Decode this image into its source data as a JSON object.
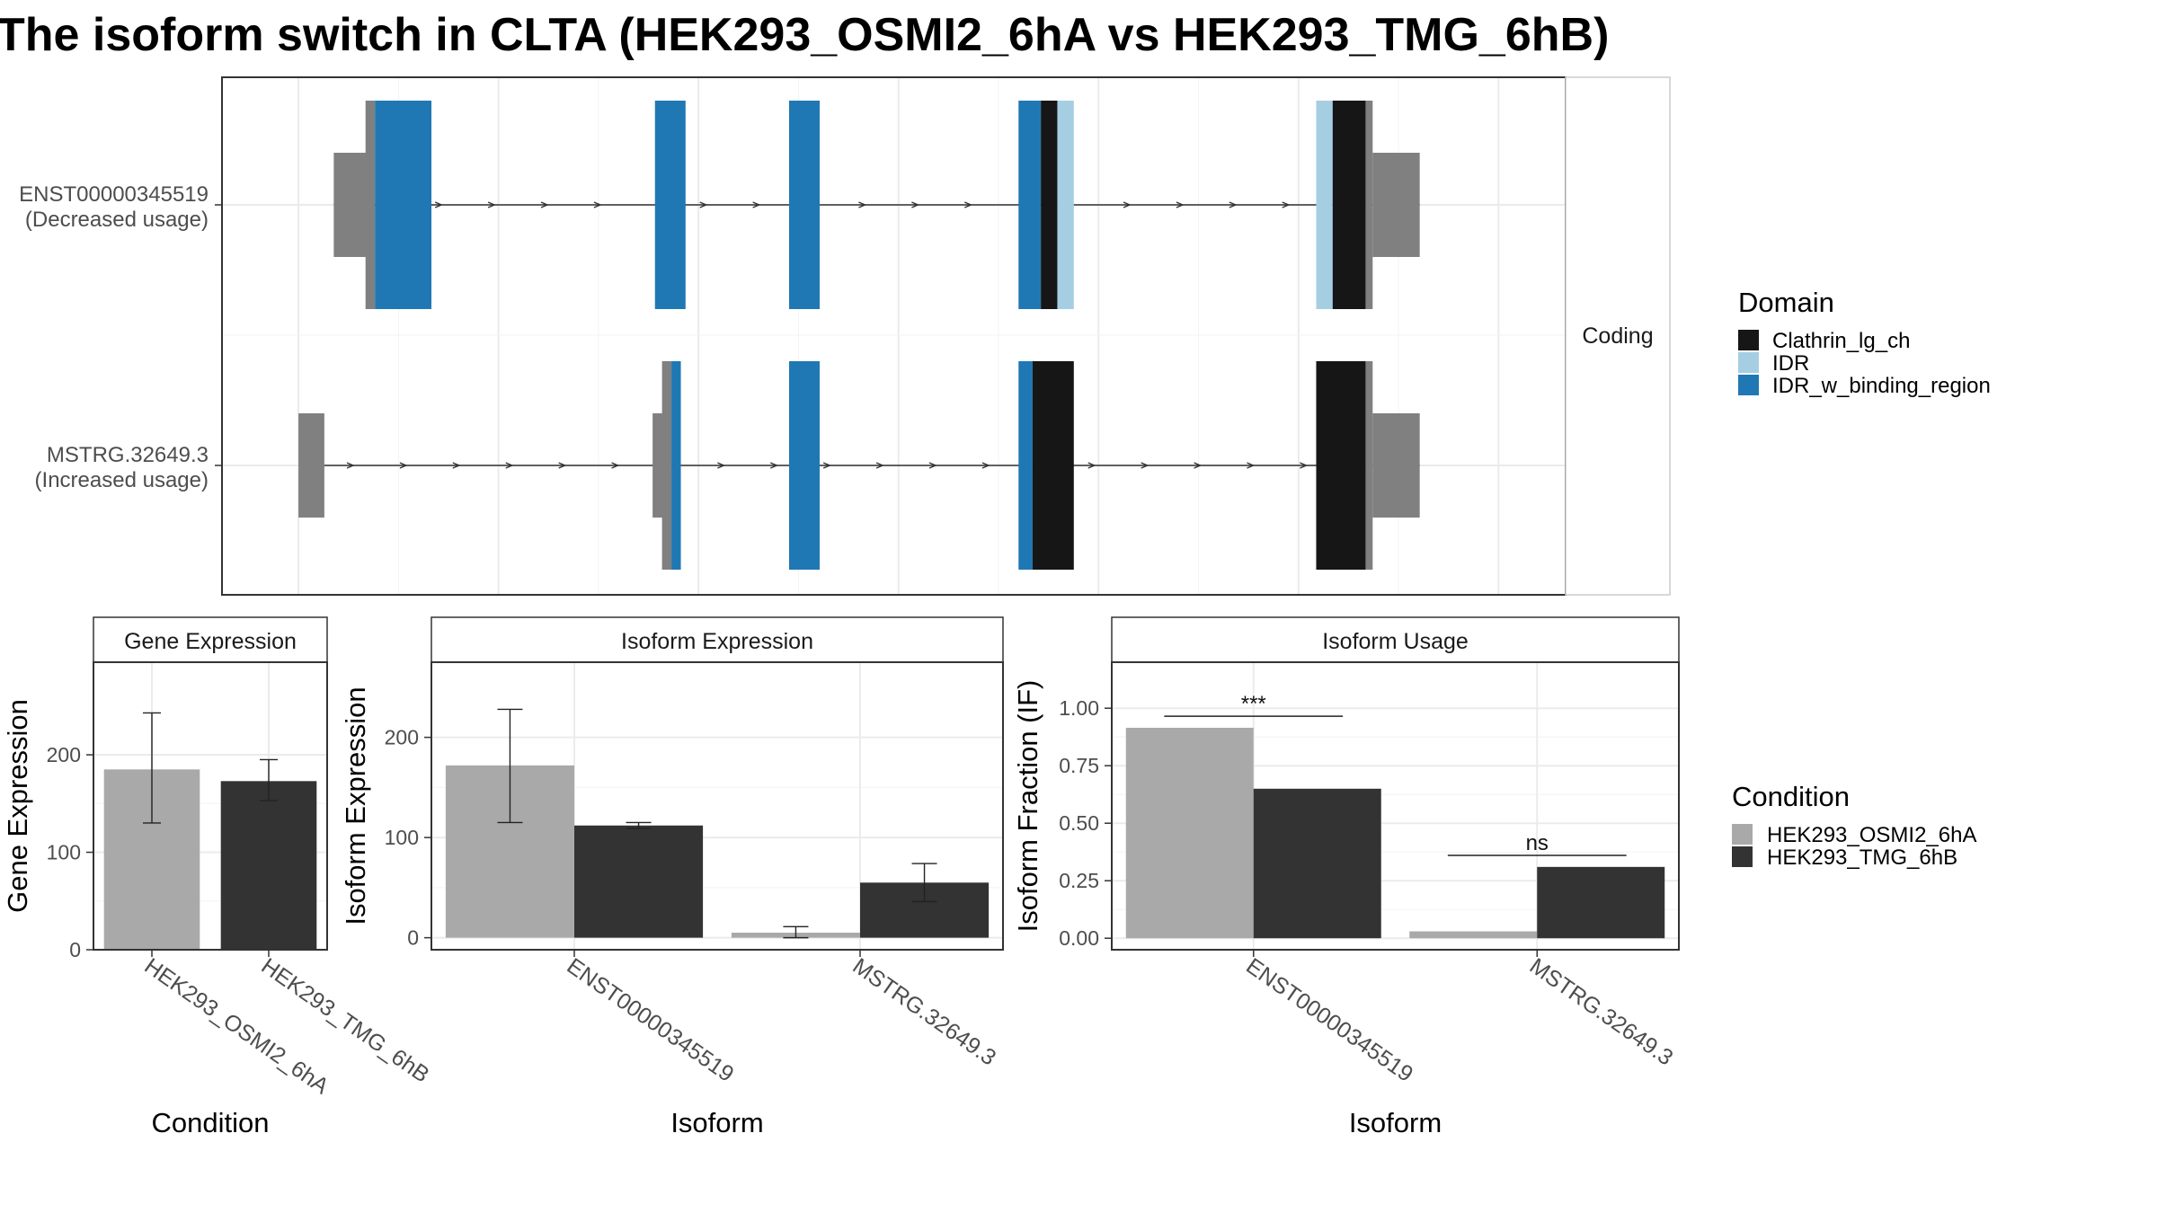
{
  "title": "The isoform switch in CLTA (HEK293_OSMI2_6hA vs HEK293_TMG_6hB)",
  "colors": {
    "utr": "#808080",
    "Clathrin_lg_ch": "#161616",
    "IDR": "#a6cee3",
    "IDR_w_binding_region": "#1f78b4",
    "HEK293_OSMI2_6hA": "#a9a9a9",
    "HEK293_TMG_6hB": "#333333",
    "intron": "#333333"
  },
  "domain_legend": {
    "title": "Domain",
    "items": [
      "Clathrin_lg_ch",
      "IDR",
      "IDR_w_binding_region"
    ]
  },
  "condition_legend": {
    "title": "Condition",
    "items": [
      "HEK293_OSMI2_6hA",
      "HEK293_TMG_6hB"
    ]
  },
  "structure": {
    "strip_label": "Coding",
    "transcripts": [
      {
        "id": "ENST00000345519",
        "usage": "(Decreased usage)",
        "span": [
          105,
          1120
        ],
        "features": [
          {
            "start": 105,
            "end": 138,
            "kind": "utr"
          },
          {
            "start": 132,
            "end": 140,
            "kind": "utr_cds"
          },
          {
            "start": 140,
            "end": 188,
            "kind": "IDR_w_binding_region"
          },
          {
            "start": 378,
            "end": 404,
            "kind": "IDR_w_binding_region"
          },
          {
            "start": 492,
            "end": 518,
            "kind": "IDR_w_binding_region"
          },
          {
            "start": 687,
            "end": 706,
            "kind": "IDR_w_binding_region"
          },
          {
            "start": 706,
            "end": 720,
            "kind": "Clathrin_lg_ch"
          },
          {
            "start": 720,
            "end": 734,
            "kind": "IDR"
          },
          {
            "start": 940,
            "end": 954,
            "kind": "IDR"
          },
          {
            "start": 954,
            "end": 982,
            "kind": "Clathrin_lg_ch"
          },
          {
            "start": 982,
            "end": 988,
            "kind": "utr_cds"
          },
          {
            "start": 988,
            "end": 1028,
            "kind": "utr"
          }
        ]
      },
      {
        "id": "MSTRG.32649.3",
        "usage": "(Increased usage)",
        "span": [
          75,
          1120
        ],
        "features": [
          {
            "start": 75,
            "end": 97,
            "kind": "utr"
          },
          {
            "start": 376,
            "end": 390,
            "kind": "utr"
          },
          {
            "start": 384,
            "end": 392,
            "kind": "utr_cds"
          },
          {
            "start": 392,
            "end": 400,
            "kind": "IDR_w_binding_region"
          },
          {
            "start": 492,
            "end": 518,
            "kind": "IDR_w_binding_region"
          },
          {
            "start": 687,
            "end": 699,
            "kind": "IDR_w_binding_region"
          },
          {
            "start": 699,
            "end": 734,
            "kind": "Clathrin_lg_ch"
          },
          {
            "start": 940,
            "end": 982,
            "kind": "Clathrin_lg_ch"
          },
          {
            "start": 982,
            "end": 988,
            "kind": "utr_cds"
          },
          {
            "start": 988,
            "end": 1028,
            "kind": "utr"
          }
        ]
      }
    ]
  },
  "chart_data": [
    {
      "type": "bar",
      "title": "Gene Expression",
      "xlabel": "Condition",
      "ylabel": "Gene Expression",
      "categories": [
        "HEK293_OSMI2_6hA",
        "HEK293_TMG_6hB"
      ],
      "values": [
        185,
        173
      ],
      "error_low": [
        130,
        153
      ],
      "error_high": [
        243,
        195
      ],
      "ylim": [
        0,
        295
      ],
      "yticks": [
        0,
        100,
        200
      ]
    },
    {
      "type": "bar",
      "title": "Isoform Expression",
      "xlabel": "Isoform",
      "ylabel": "Isoform Expression",
      "categories": [
        "ENST00000345519",
        "MSTRG.32649.3"
      ],
      "series": [
        {
          "name": "HEK293_OSMI2_6hA",
          "values": [
            172,
            5
          ],
          "error_low": [
            115,
            0
          ],
          "error_high": [
            228,
            11
          ]
        },
        {
          "name": "HEK293_TMG_6hB",
          "values": [
            112,
            55
          ],
          "error_low": [
            109,
            36
          ],
          "error_high": [
            115,
            74
          ]
        }
      ],
      "ylim": [
        -12,
        275
      ],
      "yticks": [
        0,
        100,
        200
      ]
    },
    {
      "type": "bar",
      "title": "Isoform Usage",
      "xlabel": "Isoform",
      "ylabel": "Isoform Fraction (IF)",
      "categories": [
        "ENST00000345519",
        "MSTRG.32649.3"
      ],
      "series": [
        {
          "name": "HEK293_OSMI2_6hA",
          "values": [
            0.915,
            0.03
          ]
        },
        {
          "name": "HEK293_TMG_6hB",
          "values": [
            0.65,
            0.31
          ]
        }
      ],
      "significance": [
        "***",
        "ns"
      ],
      "significance_y": [
        0.965,
        0.36
      ],
      "ylim": [
        -0.05,
        1.2
      ],
      "yticks": [
        0.0,
        0.25,
        0.5,
        0.75,
        1.0
      ],
      "ytick_labels": [
        "0.00",
        "0.25",
        "0.50",
        "0.75",
        "1.00"
      ]
    }
  ]
}
